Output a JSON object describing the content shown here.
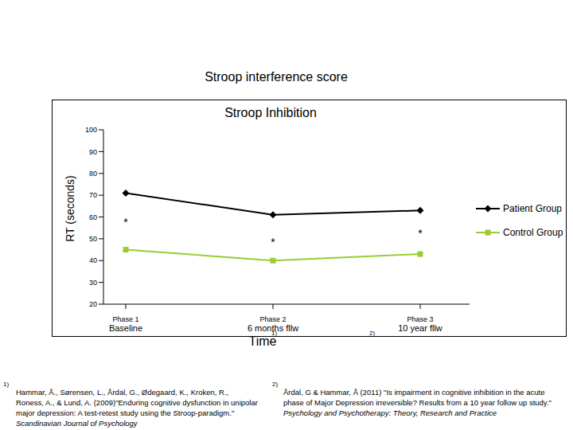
{
  "heading": "Stroop interference score",
  "chart_data": {
    "type": "line",
    "title": "Stroop Inhibition",
    "y_label": "RT (seconds)",
    "x_label": "Time",
    "categories": [
      "Phase 1",
      "Phase 2",
      "Phase 3"
    ],
    "category_sublabels": [
      "Baseline",
      "6 months fllw",
      "10 year fllw"
    ],
    "category_notes": [
      null,
      "1)",
      "2)"
    ],
    "series": [
      {
        "name": "Patient Group",
        "color": "#000000",
        "marker": "diamond",
        "values": [
          71,
          61,
          63
        ]
      },
      {
        "name": "Control Group",
        "color": "#99cc33",
        "marker": "square",
        "values": [
          45,
          40,
          43
        ]
      }
    ],
    "ylim": [
      20,
      100
    ],
    "yticks": [
      20,
      30,
      40,
      50,
      60,
      70,
      80,
      90,
      100
    ],
    "grid": false,
    "legend": "right",
    "annotations": [
      {
        "text": "*",
        "x": 0,
        "y": 58
      },
      {
        "text": "*",
        "x": 1,
        "y": 49
      },
      {
        "text": "*",
        "x": 2,
        "y": 53
      }
    ]
  },
  "footnotes": [
    {
      "marker": "1)",
      "text": "Hammar, Å., Sørensen, L., Årdal, G., Ødegaard, K., Kroken, R., Roness, A., & Lund, A. (2009)\"Enduring cognitive dysfunction in unipolar major depression: A test-retest study using the Stroop-paradigm.\"",
      "source": "Scandinavian Journal of Psychology"
    },
    {
      "marker": "2)",
      "text": "Årdal, G & Hammar, Å (2011) \"Is impairment in cognitive inhibition in the acute phase of Major Depression irreversible? Results from a 10 year follow up study.\"",
      "source": "Psychology and Psychotherapy: Theory, Research and Practice"
    }
  ]
}
